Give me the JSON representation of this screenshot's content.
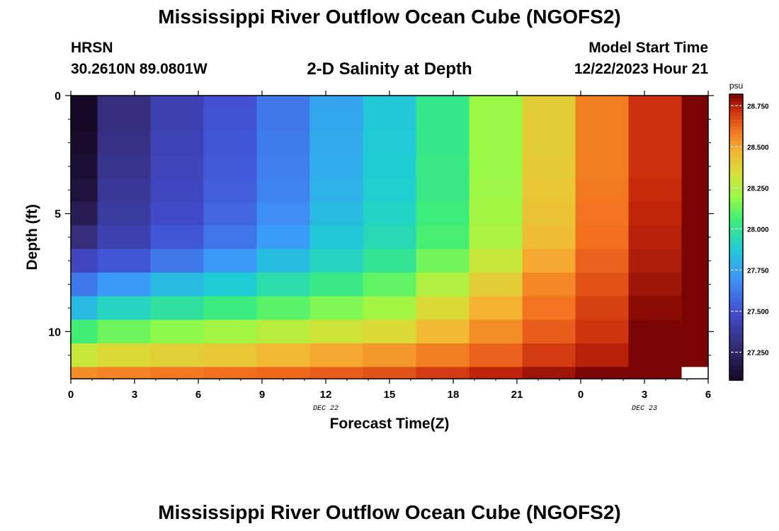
{
  "header": {
    "title": "Mississippi River Outflow Ocean Cube (NGOFS2)",
    "station": "HRSN",
    "coordinates": "30.2610N  89.0801W",
    "subtitle": "2-D Salinity at Depth",
    "model_start_label": "Model Start Time",
    "model_start_value": "12/22/2023 Hour 21"
  },
  "footer": {
    "title": "Mississippi River Outflow Ocean Cube (NGOFS2)"
  },
  "chart_data": {
    "type": "heatmap",
    "title": "2-D Salinity at Depth",
    "xlabel": "Forecast Time(Z)",
    "ylabel": "Depth (ft)",
    "x_ticks": [
      "0",
      "3",
      "6",
      "9",
      "12",
      "15",
      "18",
      "21",
      "0",
      "3",
      "6"
    ],
    "x_tick_hours": [
      0,
      3,
      6,
      9,
      12,
      15,
      18,
      21,
      24,
      27,
      30
    ],
    "date_labels": [
      {
        "text": "DEC 22",
        "hour": 12
      },
      {
        "text": "DEC 23",
        "hour": 27
      }
    ],
    "y_ticks": [
      "0",
      "5",
      "10"
    ],
    "y_tick_values": [
      0,
      5,
      10
    ],
    "xlim": [
      0,
      30
    ],
    "ylim": [
      0,
      12
    ],
    "depth_edges": [
      0,
      0.5,
      1.5,
      2.5,
      3.5,
      4.5,
      5.5,
      6.5,
      7.5,
      8.5,
      9.5,
      10.5,
      11.5,
      12
    ],
    "time_edges": [
      0,
      1.25,
      3.75,
      6.25,
      8.75,
      11.25,
      13.75,
      16.25,
      18.75,
      21.25,
      23.75,
      26.25,
      28.75,
      30
    ],
    "values": [
      [
        27.0,
        27.3,
        27.42,
        27.5,
        27.62,
        27.75,
        27.86,
        28.02,
        28.2,
        28.4,
        28.58,
        28.72,
        28.92
      ],
      [
        27.08,
        27.3,
        27.42,
        27.51,
        27.62,
        27.76,
        27.86,
        28.02,
        28.2,
        28.4,
        28.58,
        28.72,
        28.92
      ],
      [
        27.1,
        27.32,
        27.43,
        27.52,
        27.63,
        27.77,
        27.87,
        28.02,
        28.2,
        28.4,
        28.58,
        28.72,
        28.92
      ],
      [
        27.12,
        27.34,
        27.44,
        27.53,
        27.64,
        27.78,
        27.88,
        28.03,
        28.2,
        28.41,
        28.58,
        28.72,
        28.92
      ],
      [
        27.14,
        27.36,
        27.45,
        27.54,
        27.65,
        27.79,
        27.89,
        28.03,
        28.21,
        28.42,
        28.59,
        28.73,
        28.92
      ],
      [
        27.2,
        27.38,
        27.47,
        27.57,
        27.68,
        27.82,
        27.91,
        28.05,
        28.22,
        28.43,
        28.6,
        28.74,
        28.92
      ],
      [
        27.3,
        27.42,
        27.52,
        27.61,
        27.73,
        27.86,
        27.94,
        28.07,
        28.24,
        28.45,
        28.61,
        28.75,
        28.92
      ],
      [
        27.45,
        27.52,
        27.62,
        27.72,
        27.83,
        27.92,
        28.0,
        28.14,
        28.3,
        28.5,
        28.63,
        28.76,
        28.92
      ],
      [
        27.62,
        27.72,
        27.82,
        27.88,
        27.96,
        28.03,
        28.11,
        28.25,
        28.4,
        28.56,
        28.66,
        28.78,
        28.92
      ],
      [
        27.82,
        27.92,
        27.98,
        28.04,
        28.1,
        28.16,
        28.22,
        28.36,
        28.48,
        28.6,
        28.69,
        28.8,
        28.92
      ],
      [
        28.06,
        28.13,
        28.18,
        28.22,
        28.27,
        28.32,
        28.36,
        28.46,
        28.55,
        28.64,
        28.71,
        28.82,
        28.92
      ],
      [
        28.3,
        28.36,
        28.39,
        28.42,
        28.46,
        28.5,
        28.53,
        28.58,
        28.63,
        28.7,
        28.75,
        28.84,
        28.92
      ],
      [
        28.55,
        28.57,
        28.59,
        28.61,
        28.62,
        28.64,
        28.66,
        28.7,
        28.74,
        28.78,
        28.82,
        28.86,
        null
      ]
    ],
    "colorbar": {
      "unit": "psu",
      "range": [
        27.08,
        28.82
      ],
      "ticks": [
        "27.250",
        "27.500",
        "27.750",
        "28.000",
        "28.250",
        "28.500",
        "28.750"
      ],
      "tick_values": [
        27.25,
        27.5,
        27.75,
        28.0,
        28.25,
        28.5,
        28.75
      ]
    }
  }
}
